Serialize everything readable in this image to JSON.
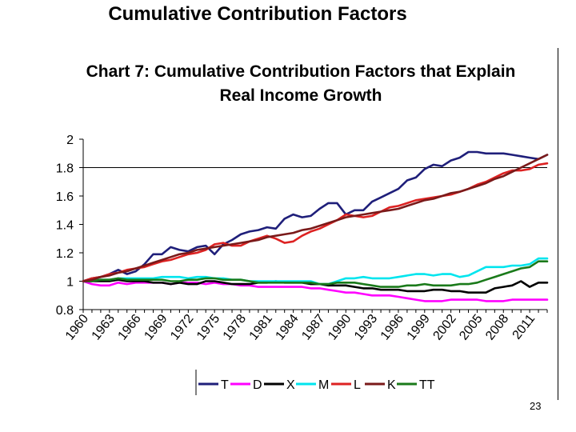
{
  "slide": {
    "title": "Cumulative Contribution Factors",
    "page_number": "23"
  },
  "chart_data": {
    "type": "line",
    "title": "Chart 7: Cumulative Contribution Factors that Explain",
    "subtitle": "Real Income Growth",
    "xlabel": "",
    "ylabel": "",
    "ylim": [
      0.8,
      2
    ],
    "xlim": [
      1960,
      2013
    ],
    "y_ticks": [
      "0.8",
      "1",
      "1.2",
      "1.4",
      "1.6",
      "1.8",
      "2"
    ],
    "x_ticks": [
      "1960",
      "1963",
      "1966",
      "1969",
      "1972",
      "1975",
      "1978",
      "1981",
      "1984",
      "1987",
      "1990",
      "1993",
      "1996",
      "1999",
      "2002",
      "2005",
      "2008",
      "2011"
    ],
    "reference_line": 1.8,
    "legend_position": "bottom",
    "x": [
      1960,
      1961,
      1962,
      1963,
      1964,
      1965,
      1966,
      1967,
      1968,
      1969,
      1970,
      1971,
      1972,
      1973,
      1974,
      1975,
      1976,
      1977,
      1978,
      1979,
      1980,
      1981,
      1982,
      1983,
      1984,
      1985,
      1986,
      1987,
      1988,
      1989,
      1990,
      1991,
      1992,
      1993,
      1994,
      1995,
      1996,
      1997,
      1998,
      1999,
      2000,
      2001,
      2002,
      2003,
      2004,
      2005,
      2006,
      2007,
      2008,
      2009,
      2010,
      2011,
      2012,
      2013
    ],
    "series": [
      {
        "name": "T",
        "color": "#1f1f7a",
        "values": [
          1.0,
          1.02,
          1.03,
          1.05,
          1.08,
          1.05,
          1.07,
          1.12,
          1.19,
          1.19,
          1.24,
          1.22,
          1.21,
          1.24,
          1.25,
          1.19,
          1.26,
          1.29,
          1.33,
          1.35,
          1.36,
          1.38,
          1.37,
          1.44,
          1.47,
          1.45,
          1.46,
          1.51,
          1.55,
          1.55,
          1.47,
          1.5,
          1.5,
          1.56,
          1.59,
          1.62,
          1.65,
          1.71,
          1.73,
          1.79,
          1.82,
          1.81,
          1.85,
          1.87,
          1.91,
          1.91,
          1.9,
          1.9,
          1.9,
          1.89,
          1.88,
          1.87,
          1.86,
          1.89
        ]
      },
      {
        "name": "D",
        "color": "#ff00ff",
        "values": [
          1.0,
          0.98,
          0.97,
          0.97,
          0.99,
          0.98,
          0.99,
          0.99,
          0.99,
          0.99,
          0.98,
          0.99,
          0.99,
          0.99,
          0.98,
          0.99,
          0.98,
          0.98,
          0.97,
          0.97,
          0.96,
          0.96,
          0.96,
          0.96,
          0.96,
          0.96,
          0.95,
          0.95,
          0.94,
          0.93,
          0.92,
          0.92,
          0.91,
          0.9,
          0.9,
          0.9,
          0.89,
          0.88,
          0.87,
          0.86,
          0.86,
          0.86,
          0.87,
          0.87,
          0.87,
          0.87,
          0.86,
          0.86,
          0.86,
          0.87,
          0.87,
          0.87,
          0.87,
          0.87
        ]
      },
      {
        "name": "X",
        "color": "#000000",
        "values": [
          1.0,
          1.0,
          1.0,
          1.0,
          1.01,
          1.0,
          1.0,
          1.0,
          0.99,
          0.99,
          0.98,
          0.99,
          0.98,
          0.98,
          1.0,
          1.0,
          0.99,
          0.98,
          0.98,
          0.98,
          0.99,
          0.99,
          1.0,
          0.99,
          0.99,
          0.99,
          0.98,
          0.98,
          0.97,
          0.97,
          0.97,
          0.96,
          0.95,
          0.95,
          0.94,
          0.94,
          0.94,
          0.93,
          0.93,
          0.93,
          0.94,
          0.94,
          0.93,
          0.93,
          0.92,
          0.92,
          0.92,
          0.95,
          0.96,
          0.97,
          1.0,
          0.96,
          0.99,
          0.99
        ]
      },
      {
        "name": "M",
        "color": "#00e5ee",
        "values": [
          1.0,
          1.01,
          1.01,
          1.01,
          1.02,
          1.02,
          1.02,
          1.02,
          1.02,
          1.03,
          1.03,
          1.03,
          1.02,
          1.03,
          1.03,
          1.02,
          1.02,
          1.01,
          1.01,
          1.0,
          1.0,
          1.0,
          1.0,
          1.0,
          1.0,
          1.0,
          1.0,
          0.98,
          0.98,
          1.0,
          1.02,
          1.02,
          1.03,
          1.02,
          1.02,
          1.02,
          1.03,
          1.04,
          1.05,
          1.05,
          1.04,
          1.05,
          1.05,
          1.03,
          1.04,
          1.07,
          1.1,
          1.1,
          1.1,
          1.11,
          1.11,
          1.12,
          1.16,
          1.16
        ]
      },
      {
        "name": "L",
        "color": "#dd2222",
        "values": [
          1.0,
          1.02,
          1.03,
          1.05,
          1.06,
          1.08,
          1.09,
          1.1,
          1.12,
          1.14,
          1.15,
          1.17,
          1.19,
          1.2,
          1.22,
          1.26,
          1.27,
          1.25,
          1.25,
          1.28,
          1.3,
          1.32,
          1.3,
          1.27,
          1.28,
          1.32,
          1.35,
          1.37,
          1.4,
          1.43,
          1.47,
          1.46,
          1.45,
          1.46,
          1.49,
          1.52,
          1.53,
          1.55,
          1.57,
          1.58,
          1.59,
          1.6,
          1.61,
          1.63,
          1.65,
          1.68,
          1.7,
          1.73,
          1.76,
          1.78,
          1.78,
          1.79,
          1.82,
          1.83
        ]
      },
      {
        "name": "K",
        "color": "#7a1a1a",
        "values": [
          1.0,
          1.01,
          1.03,
          1.04,
          1.06,
          1.07,
          1.09,
          1.11,
          1.13,
          1.15,
          1.17,
          1.19,
          1.2,
          1.22,
          1.23,
          1.24,
          1.25,
          1.26,
          1.27,
          1.28,
          1.29,
          1.31,
          1.32,
          1.33,
          1.34,
          1.36,
          1.37,
          1.39,
          1.41,
          1.43,
          1.45,
          1.46,
          1.47,
          1.48,
          1.49,
          1.5,
          1.51,
          1.53,
          1.55,
          1.57,
          1.58,
          1.6,
          1.62,
          1.63,
          1.65,
          1.67,
          1.69,
          1.72,
          1.74,
          1.77,
          1.8,
          1.83,
          1.86,
          1.89
        ]
      },
      {
        "name": "TT",
        "color": "#1a7a1a",
        "values": [
          1.0,
          1.0,
          1.01,
          1.01,
          1.02,
          1.01,
          1.01,
          1.01,
          1.01,
          1.01,
          1.0,
          1.0,
          1.01,
          1.01,
          1.02,
          1.02,
          1.01,
          1.01,
          1.01,
          1.0,
          0.99,
          0.99,
          0.99,
          0.99,
          0.99,
          0.99,
          0.99,
          0.98,
          0.98,
          0.99,
          0.99,
          0.99,
          0.98,
          0.97,
          0.96,
          0.96,
          0.96,
          0.97,
          0.97,
          0.98,
          0.97,
          0.97,
          0.97,
          0.98,
          0.98,
          0.99,
          1.01,
          1.03,
          1.05,
          1.07,
          1.09,
          1.1,
          1.14,
          1.14
        ]
      }
    ]
  }
}
